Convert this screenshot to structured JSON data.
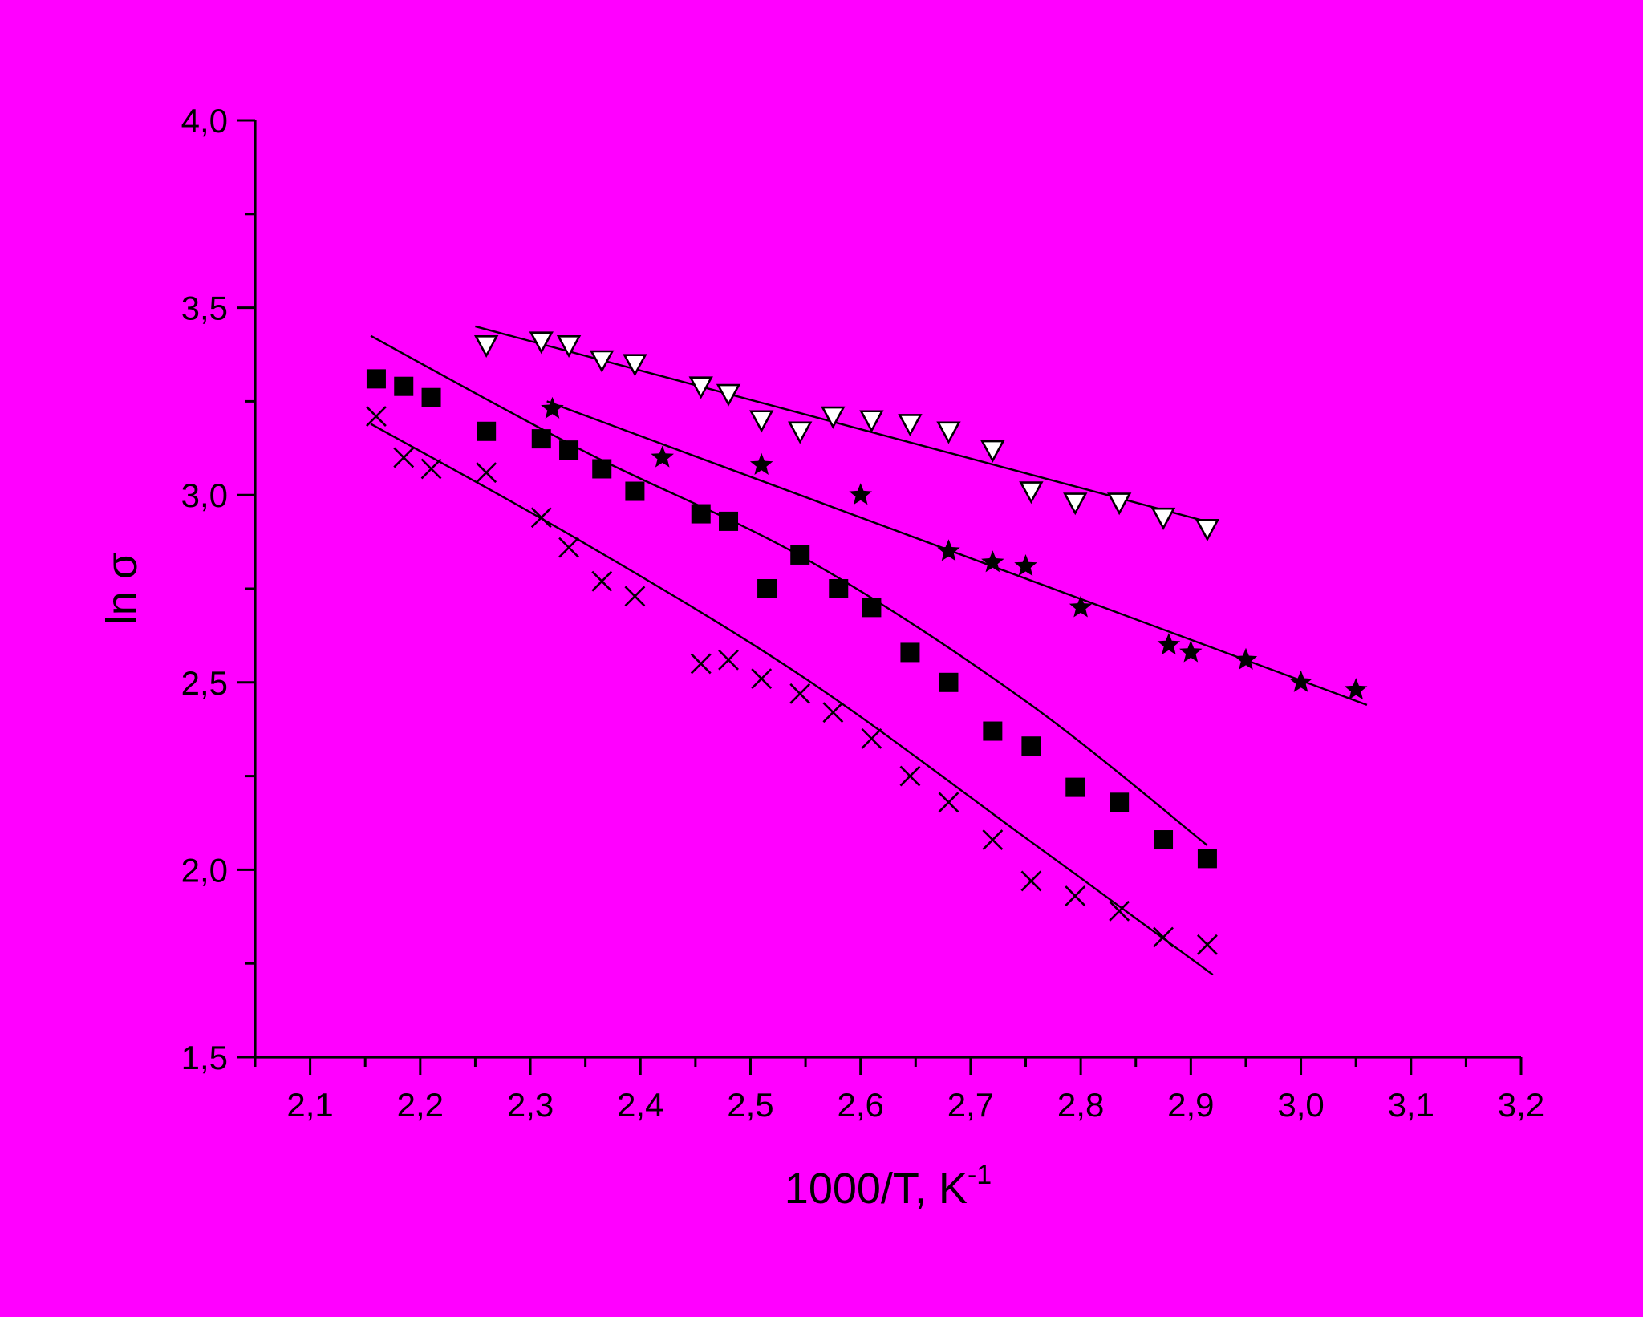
{
  "chart_data": {
    "type": "scatter",
    "xlabel": "1000/T, K",
    "xlabel_sup": "-1",
    "ylabel": "ln σ",
    "xlim": [
      2.05,
      3.2
    ],
    "ylim": [
      1.5,
      4.0
    ],
    "x_ticks": [
      "2,1",
      "2,2",
      "2,3",
      "2,4",
      "2,5",
      "2,6",
      "2,7",
      "2,8",
      "2,9",
      "3,0",
      "3,1",
      "3,2"
    ],
    "y_ticks": [
      "1,5",
      "2,0",
      "2,5",
      "3,0",
      "3,5",
      "4,0"
    ],
    "grid": false,
    "legend": "none",
    "background": "#FF00FF",
    "series": [
      {
        "marker": "triangle-down-open",
        "color": "#000000",
        "x": [
          2.26,
          2.31,
          2.335,
          2.365,
          2.395,
          2.455,
          2.48,
          2.51,
          2.545,
          2.575,
          2.61,
          2.645,
          2.68,
          2.72,
          2.755,
          2.795,
          2.835,
          2.875,
          2.915
        ],
        "y": [
          3.4,
          3.41,
          3.4,
          3.36,
          3.35,
          3.29,
          3.27,
          3.2,
          3.17,
          3.21,
          3.2,
          3.19,
          3.17,
          3.12,
          3.01,
          2.98,
          2.98,
          2.94,
          2.91
        ],
        "fit": {
          "x": [
            2.25,
            2.92
          ],
          "y": [
            3.45,
            2.925
          ]
        }
      },
      {
        "marker": "star-filled",
        "color": "#000000",
        "x": [
          2.32,
          2.42,
          2.51,
          2.6,
          2.68,
          2.72,
          2.75,
          2.8,
          2.88,
          2.9,
          2.95,
          3.0,
          3.05
        ],
        "y": [
          3.23,
          3.1,
          3.08,
          3.0,
          2.85,
          2.82,
          2.81,
          2.7,
          2.6,
          2.58,
          2.56,
          2.5,
          2.48
        ],
        "fit": {
          "x": [
            2.315,
            3.06
          ],
          "y": [
            3.25,
            2.44
          ]
        }
      },
      {
        "marker": "square-filled",
        "color": "#000000",
        "x": [
          2.16,
          2.185,
          2.21,
          2.26,
          2.31,
          2.335,
          2.365,
          2.395,
          2.455,
          2.48,
          2.515,
          2.545,
          2.58,
          2.61,
          2.645,
          2.68,
          2.72,
          2.755,
          2.795,
          2.835,
          2.875,
          2.915
        ],
        "y": [
          3.31,
          3.29,
          3.26,
          3.17,
          3.15,
          3.12,
          3.07,
          3.01,
          2.95,
          2.93,
          2.75,
          2.84,
          2.75,
          2.7,
          2.58,
          2.5,
          2.37,
          2.33,
          2.22,
          2.18,
          2.08,
          2.03
        ],
        "fit": {
          "x": [
            2.155,
            2.35,
            2.55,
            2.75,
            2.915
          ],
          "y": [
            3.425,
            3.115,
            2.83,
            2.45,
            2.065
          ]
        }
      },
      {
        "marker": "cross",
        "color": "#000000",
        "x": [
          2.16,
          2.185,
          2.21,
          2.26,
          2.31,
          2.335,
          2.365,
          2.395,
          2.455,
          2.48,
          2.51,
          2.545,
          2.575,
          2.61,
          2.645,
          2.68,
          2.72,
          2.755,
          2.795,
          2.835,
          2.875,
          2.915
        ],
        "y": [
          3.21,
          3.1,
          3.07,
          3.06,
          2.94,
          2.86,
          2.77,
          2.73,
          2.55,
          2.56,
          2.51,
          2.47,
          2.42,
          2.35,
          2.25,
          2.18,
          2.08,
          1.97,
          1.93,
          1.89,
          1.82,
          1.8
        ],
        "fit": {
          "x": [
            2.155,
            2.35,
            2.55,
            2.75,
            2.92
          ],
          "y": [
            3.19,
            2.87,
            2.51,
            2.085,
            1.72
          ]
        }
      }
    ]
  }
}
